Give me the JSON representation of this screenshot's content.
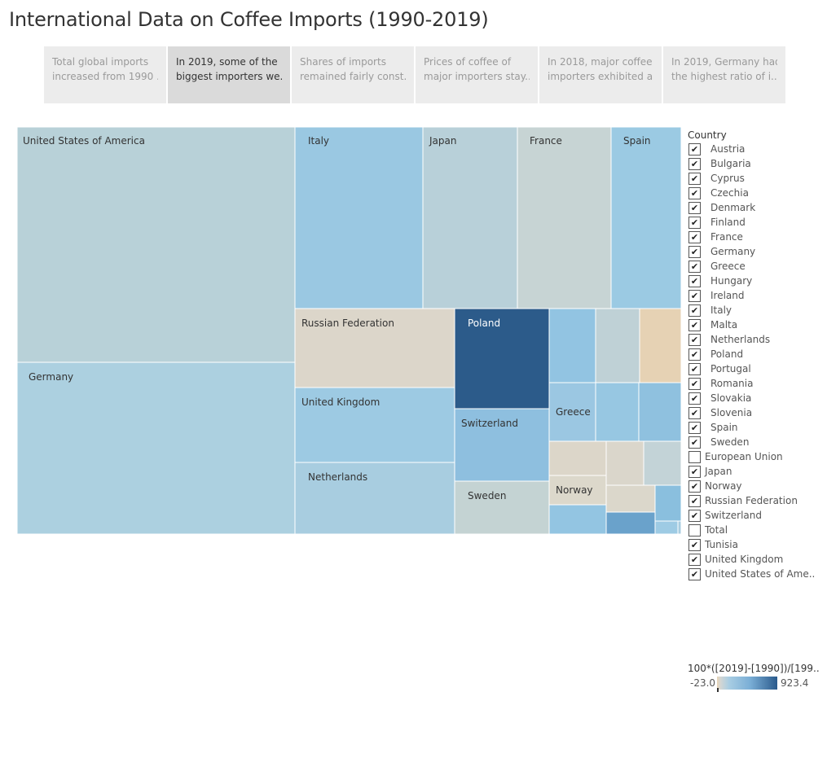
{
  "title": "International Data on Coffee Imports (1990-2019)",
  "story_points": [
    {
      "line1": "Total global imports",
      "line2": "increased from 1990 ..",
      "active": false
    },
    {
      "line1": "In 2019, some of the",
      "line2": "biggest importers we..",
      "active": true
    },
    {
      "line1": "Shares of imports",
      "line2": "remained fairly const..",
      "active": false
    },
    {
      "line1": "Prices of coffee of",
      "line2": "major importers stay..",
      "active": false
    },
    {
      "line1": "In 2018, major coffee",
      "line2": "importers exhibited a..",
      "active": false
    },
    {
      "line1": "In 2019, Germany  had",
      "line2": "the highest ratio of i..",
      "active": false
    }
  ],
  "filter": {
    "title": "Country",
    "items": [
      {
        "label": "Austria",
        "checked": true
      },
      {
        "label": "Bulgaria",
        "checked": true
      },
      {
        "label": "Cyprus",
        "checked": true
      },
      {
        "label": "Czechia",
        "checked": true
      },
      {
        "label": "Denmark",
        "checked": true
      },
      {
        "label": "Finland",
        "checked": true
      },
      {
        "label": "France",
        "checked": true
      },
      {
        "label": "Germany",
        "checked": true
      },
      {
        "label": "Greece",
        "checked": true
      },
      {
        "label": "Hungary",
        "checked": true
      },
      {
        "label": "Ireland",
        "checked": true
      },
      {
        "label": "Italy",
        "checked": true
      },
      {
        "label": "Malta",
        "checked": true
      },
      {
        "label": "Netherlands",
        "checked": true
      },
      {
        "label": "Poland",
        "checked": true
      },
      {
        "label": "Portugal",
        "checked": true
      },
      {
        "label": "Romania",
        "checked": true
      },
      {
        "label": "Slovakia",
        "checked": true
      },
      {
        "label": "Slovenia",
        "checked": true
      },
      {
        "label": "Spain",
        "checked": true
      },
      {
        "label": "Sweden",
        "checked": true
      },
      {
        "label": "European Union",
        "checked": false
      },
      {
        "label": "Japan",
        "checked": true
      },
      {
        "label": "Norway",
        "checked": true
      },
      {
        "label": "Russian Federation",
        "checked": true
      },
      {
        "label": "Switzerland",
        "checked": true
      },
      {
        "label": "Total",
        "checked": false
      },
      {
        "label": "Tunisia",
        "checked": true
      },
      {
        "label": "United Kingdom",
        "checked": true
      },
      {
        "label": "United States of Ame..",
        "checked": true
      }
    ]
  },
  "legend": {
    "title": "100*([2019]-[1990])/[199..",
    "min_label": "-23.0",
    "max_label": "923.4"
  },
  "chart_data": {
    "type": "treemap",
    "title": "",
    "size_measure": "",
    "color_measure": "100*([2019]-[1990])/[199..",
    "color_range": [
      -23.0,
      923.4
    ],
    "cells": [
      {
        "label": "United States of America",
        "color": "#b8d1d8"
      },
      {
        "label": "Germany",
        "color": "#acd0e0"
      },
      {
        "label": "Italy",
        "color": "#9ac8e2"
      },
      {
        "label": "Japan",
        "color": "#b8d0d9"
      },
      {
        "label": "France",
        "color": "#c7d4d4"
      },
      {
        "label": "Spain",
        "color": "#9bcae3"
      },
      {
        "label": "Russian Federation",
        "color": "#dcd6ca"
      },
      {
        "label": "United Kingdom",
        "color": "#9dcae3"
      },
      {
        "label": "Netherlands",
        "color": "#a8cde0"
      },
      {
        "label": "Poland",
        "color": "#2c5b8a"
      },
      {
        "label": "Switzerland",
        "color": "#8ebfdf"
      },
      {
        "label": "Sweden",
        "color": "#c4d3d3"
      },
      {
        "label": "Greece",
        "color": "#9bc7e2"
      },
      {
        "label": "Norway",
        "color": "#dcd8cb"
      },
      {
        "label": "",
        "color": "#92c4e2"
      },
      {
        "label": "",
        "color": "#bfd1d6"
      },
      {
        "label": "",
        "color": "#e6d2b4"
      },
      {
        "label": "",
        "color": "#97c7e2"
      },
      {
        "label": "",
        "color": "#8fc1df"
      },
      {
        "label": "",
        "color": "#dcd6c9"
      },
      {
        "label": "",
        "color": "#dad6cb"
      },
      {
        "label": "",
        "color": "#c3d3d7"
      },
      {
        "label": "",
        "color": "#dbd7cb"
      },
      {
        "label": "",
        "color": "#8abfde"
      },
      {
        "label": "",
        "color": "#93c5e2"
      },
      {
        "label": "",
        "color": "#6aa2cb"
      },
      {
        "label": "",
        "color": "#9ecbe4"
      },
      {
        "label": "",
        "color": "#a9cde0"
      }
    ]
  }
}
